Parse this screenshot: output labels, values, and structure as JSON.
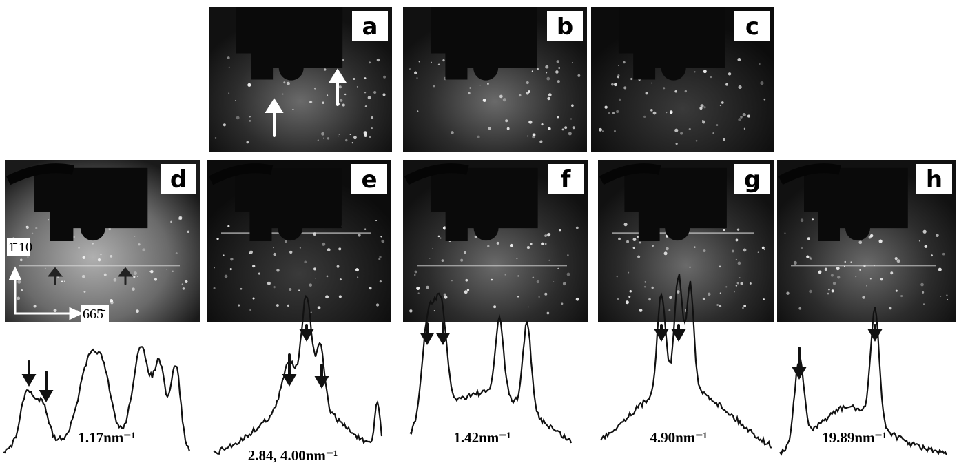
{
  "panels": [
    "a",
    "b",
    "c",
    "d",
    "e",
    "f",
    "g",
    "h"
  ],
  "axes": {
    "vertical": "1̄ 10",
    "horizontal": "665̄"
  },
  "profiles": [
    "1.17nm⁻¹",
    "2.84, 4.00nm⁻¹",
    "1.42nm⁻¹",
    "4.90nm⁻¹",
    "19.89nm⁻¹"
  ]
}
